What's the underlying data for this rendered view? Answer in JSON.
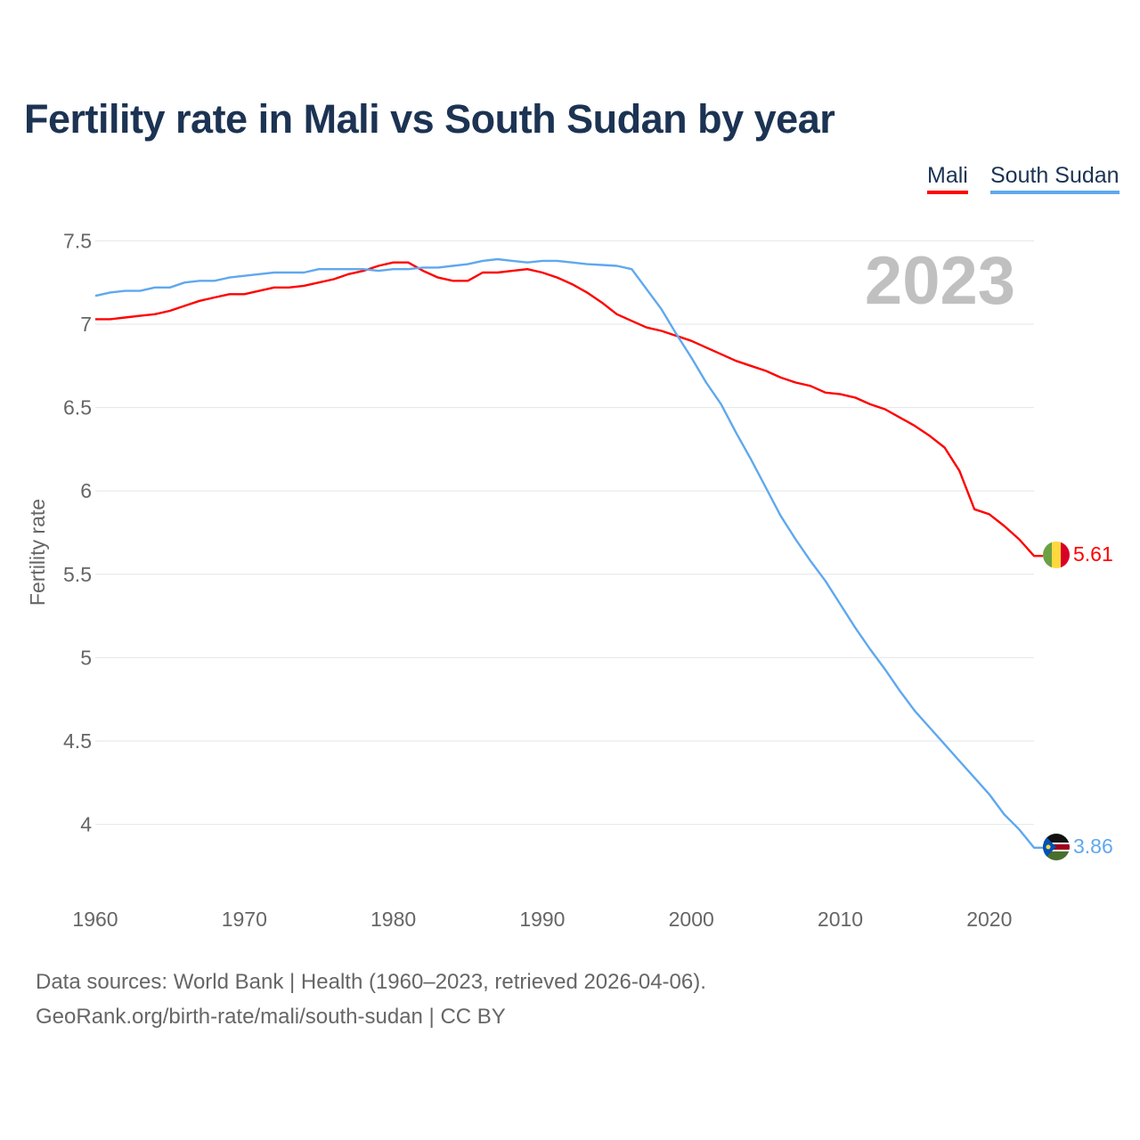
{
  "chart_data": {
    "type": "line",
    "title": "Fertility rate in Mali vs South Sudan by year",
    "xlabel": "",
    "ylabel": "Fertility rate",
    "xlim": [
      1960,
      2023
    ],
    "ylim": [
      3.8,
      7.6
    ],
    "x_ticks": [
      "1960",
      "1970",
      "1980",
      "1990",
      "2000",
      "2010",
      "2020"
    ],
    "y_ticks": [
      "4",
      "4.5",
      "5",
      "5.5",
      "6",
      "6.5",
      "7",
      "7.5"
    ],
    "grid": true,
    "legend_position": "top-right",
    "year_watermark": "2023",
    "x": [
      1960,
      1961,
      1962,
      1963,
      1964,
      1965,
      1966,
      1967,
      1968,
      1969,
      1970,
      1971,
      1972,
      1973,
      1974,
      1975,
      1976,
      1977,
      1978,
      1979,
      1980,
      1981,
      1982,
      1983,
      1984,
      1985,
      1986,
      1987,
      1988,
      1989,
      1990,
      1991,
      1992,
      1993,
      1994,
      1995,
      1996,
      1997,
      1998,
      1999,
      2000,
      2001,
      2002,
      2003,
      2004,
      2005,
      2006,
      2007,
      2008,
      2009,
      2010,
      2011,
      2012,
      2013,
      2014,
      2015,
      2016,
      2017,
      2018,
      2019,
      2020,
      2021,
      2022,
      2023
    ],
    "series": [
      {
        "name": "Mali",
        "color": "#ff0000",
        "end_label": "5.61",
        "values": [
          7.03,
          7.03,
          7.04,
          7.05,
          7.06,
          7.08,
          7.11,
          7.14,
          7.16,
          7.18,
          7.18,
          7.2,
          7.22,
          7.22,
          7.23,
          7.25,
          7.27,
          7.3,
          7.32,
          7.35,
          7.37,
          7.37,
          7.32,
          7.28,
          7.26,
          7.26,
          7.31,
          7.31,
          7.32,
          7.33,
          7.31,
          7.28,
          7.24,
          7.19,
          7.13,
          7.06,
          7.02,
          6.98,
          6.96,
          6.93,
          6.9,
          6.86,
          6.82,
          6.78,
          6.75,
          6.72,
          6.68,
          6.65,
          6.63,
          6.59,
          6.58,
          6.56,
          6.52,
          6.49,
          6.44,
          6.39,
          6.33,
          6.26,
          6.12,
          5.89,
          5.86,
          5.79,
          5.71,
          5.61
        ]
      },
      {
        "name": "South Sudan",
        "color": "#5fa8ee",
        "end_label": "3.86",
        "values": [
          7.17,
          7.19,
          7.2,
          7.2,
          7.22,
          7.22,
          7.25,
          7.26,
          7.26,
          7.28,
          7.29,
          7.3,
          7.31,
          7.31,
          7.31,
          7.33,
          7.33,
          7.33,
          7.33,
          7.32,
          7.33,
          7.33,
          7.34,
          7.34,
          7.35,
          7.36,
          7.38,
          7.39,
          7.38,
          7.37,
          7.38,
          7.38,
          7.37,
          7.36,
          7.355,
          7.35,
          7.33,
          7.21,
          7.09,
          6.94,
          6.8,
          6.65,
          6.52,
          6.35,
          6.19,
          6.02,
          5.85,
          5.71,
          5.58,
          5.46,
          5.32,
          5.18,
          5.05,
          4.93,
          4.8,
          4.68,
          4.58,
          4.48,
          4.38,
          4.28,
          4.18,
          4.06,
          3.97,
          3.86
        ]
      }
    ]
  },
  "legend": {
    "mali": "Mali",
    "south_sudan": "South Sudan"
  },
  "footer": {
    "line1": "Data sources: World Bank | Health (1960–2023, retrieved 2026-04-06).",
    "line2": "GeoRank.org/birth-rate/mali/south-sudan | CC BY"
  }
}
